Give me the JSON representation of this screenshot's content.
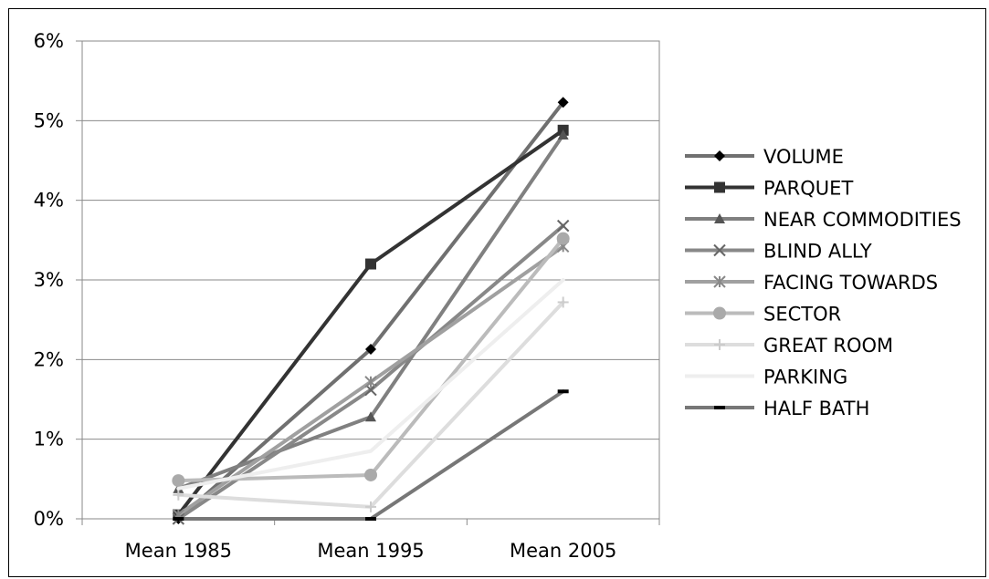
{
  "chart_data": {
    "type": "line",
    "categories": [
      "Mean 1985",
      "Mean 1995",
      "Mean 2005"
    ],
    "y_ticks": [
      "0%",
      "1%",
      "2%",
      "3%",
      "4%",
      "5%",
      "6%"
    ],
    "ylim": [
      0,
      6
    ],
    "y_unit": "%",
    "grid": true,
    "legend_position": "right",
    "series": [
      {
        "name": "VOLUME",
        "values": [
          0.0,
          2.13,
          5.23
        ],
        "color": "#707070",
        "marker": "diamond",
        "marker_color": "#000000"
      },
      {
        "name": "PARQUET",
        "values": [
          0.05,
          3.2,
          4.88
        ],
        "color": "#333333",
        "marker": "square",
        "marker_color": "#333333"
      },
      {
        "name": "NEAR COMMODITIES",
        "values": [
          0.38,
          1.28,
          4.82
        ],
        "color": "#808080",
        "marker": "triangle",
        "marker_color": "#555555"
      },
      {
        "name": "BLIND ALLY",
        "values": [
          0.0,
          1.62,
          3.68
        ],
        "color": "#888888",
        "marker": "x",
        "marker_color": "#666666"
      },
      {
        "name": "FACING TOWARDS",
        "values": [
          0.05,
          1.72,
          3.42
        ],
        "color": "#a0a0a0",
        "marker": "asterisk",
        "marker_color": "#888888"
      },
      {
        "name": "SECTOR",
        "values": [
          0.48,
          0.55,
          3.52
        ],
        "color": "#bbbbbb",
        "marker": "circle",
        "marker_color": "#aaaaaa"
      },
      {
        "name": "GREAT ROOM",
        "values": [
          0.3,
          0.15,
          2.72
        ],
        "color": "#dddddd",
        "marker": "plus",
        "marker_color": "#cccccc"
      },
      {
        "name": "PARKING",
        "values": [
          0.38,
          0.85,
          3.0
        ],
        "color": "#eeeeee",
        "marker": "none",
        "marker_color": "#eeeeee"
      },
      {
        "name": "HALF BATH",
        "values": [
          0.0,
          0.0,
          1.6
        ],
        "color": "#777777",
        "marker": "dash",
        "marker_color": "#000000"
      }
    ]
  }
}
